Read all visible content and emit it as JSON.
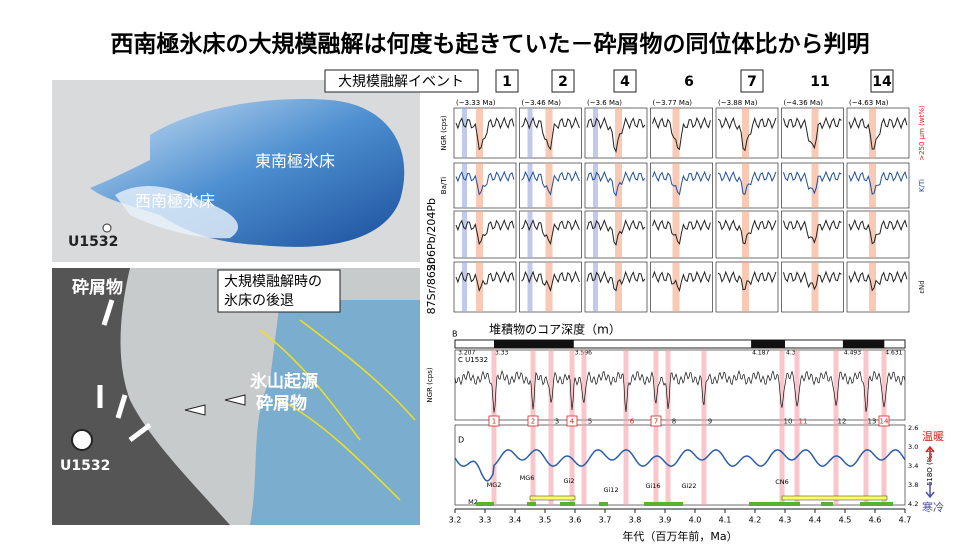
{
  "title": "西南極氷床の大規模融解は何度も起きていた－砕屑物の同位体比から判明",
  "map_top": {
    "east": "東南極氷床",
    "west": "西南極氷床",
    "site": "U1532"
  },
  "map_bottom": {
    "debris": "砕屑物",
    "legend": [
      "大規模融解時の",
      "氷床の後退"
    ],
    "iceberg": [
      "氷山起源",
      "砕屑物"
    ],
    "site": "U1532"
  },
  "events_header": {
    "label": "大規模融解イベント",
    "events": [
      {
        "n": "1",
        "boxed": true
      },
      {
        "n": "2",
        "boxed": true
      },
      {
        "n": "4",
        "boxed": true
      },
      {
        "n": "6",
        "boxed": false
      },
      {
        "n": "7",
        "boxed": true
      },
      {
        "n": "11",
        "boxed": false
      },
      {
        "n": "14",
        "boxed": true
      }
    ],
    "ages": [
      "(~3.33 Ma)",
      "(~3.46 Ma)",
      "(~3.6 Ma)",
      "(~3.77 Ma)",
      "(~3.88 Ma)",
      "(~4.36 Ma)",
      "(~4.63 Ma)"
    ]
  },
  "panels": {
    "left_labels": [
      "NGR (cps)",
      "Ba/Ti",
      "206Pb/204Pb",
      "87Sr/86Sr"
    ],
    "right_labels": [
      ">250 µm (wt%)",
      "K/Ti",
      "",
      "εNd"
    ],
    "depth_axis": "堆積物のコア深度（m）"
  },
  "timeline": {
    "b_label": "B",
    "c_label": "C U1532",
    "d_label": "D",
    "ngr_label": "NGR (cps)",
    "d18o_label": "δ18O (‰)",
    "chron_ages": [
      "3.207",
      "3.33",
      "3.596",
      "4.187",
      "4.3",
      "4.493",
      "4.631"
    ],
    "events": [
      {
        "n": "1",
        "style": "box"
      },
      {
        "n": "2",
        "style": "box"
      },
      {
        "n": "3",
        "style": "plain"
      },
      {
        "n": "4",
        "style": "box"
      },
      {
        "n": "5",
        "style": "plain"
      },
      {
        "n": "6",
        "style": "red"
      },
      {
        "n": "7",
        "style": "box"
      },
      {
        "n": "8",
        "style": "plain"
      },
      {
        "n": "9",
        "style": "plain"
      },
      {
        "n": "10",
        "style": "plain"
      },
      {
        "n": "11",
        "style": "red"
      },
      {
        "n": "12",
        "style": "plain"
      },
      {
        "n": "13",
        "style": "plain"
      },
      {
        "n": "14",
        "style": "box"
      }
    ],
    "stages": [
      "M2",
      "MG2",
      "MG6",
      "Gi2",
      "Gi12",
      "Gi16",
      "Gi22",
      "CN6"
    ],
    "warm": "温暖",
    "cold": "寒冷",
    "yticks": [
      "2.6",
      "3.0",
      "3.4",
      "3.8",
      "4.2"
    ],
    "xticks": [
      3.2,
      3.3,
      3.4,
      3.5,
      3.6,
      3.7,
      3.8,
      3.9,
      {
        "value": 4,
        "label": "4.0"
      },
      4.1,
      4.2,
      4.3,
      4.4,
      4.5,
      4.6,
      4.7
    ],
    "x_axis": "年代（百万年前，Ma）"
  }
}
